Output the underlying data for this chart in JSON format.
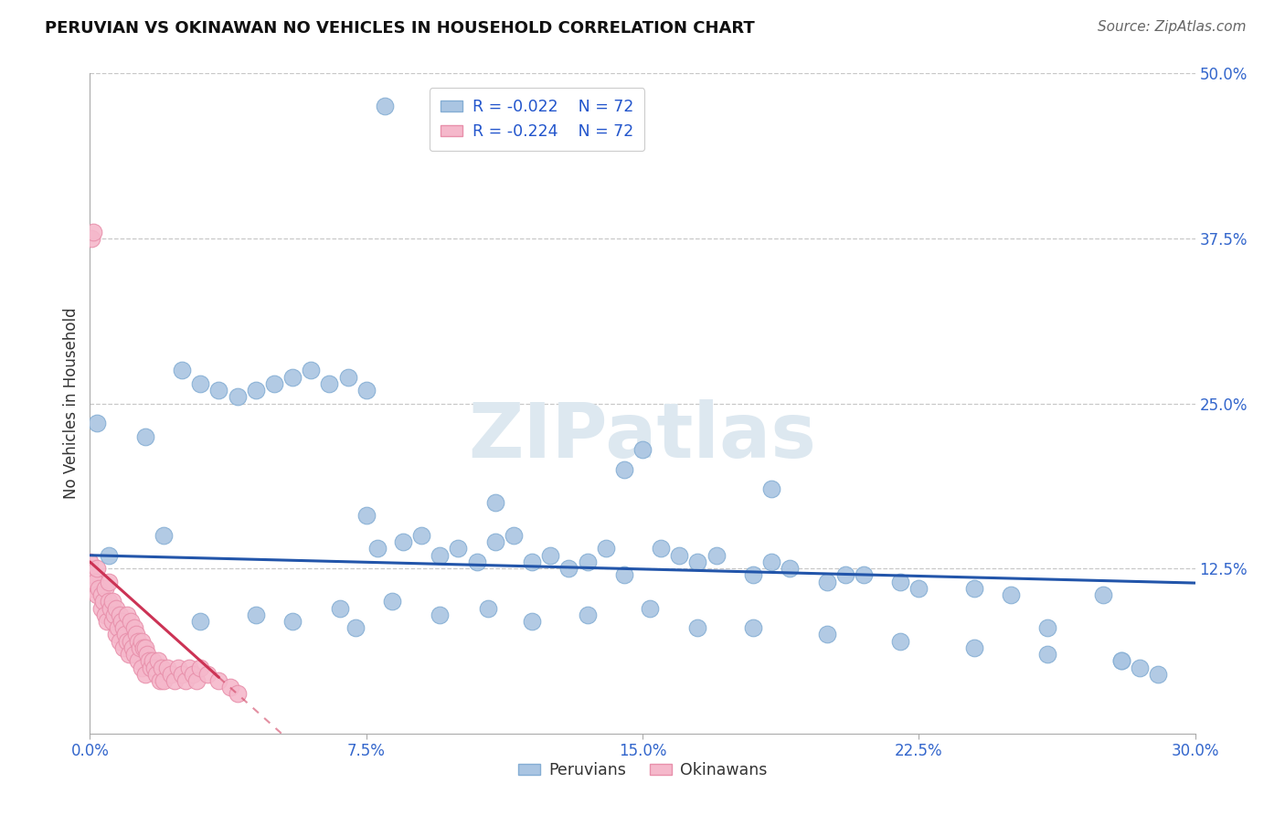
{
  "title": "PERUVIAN VS OKINAWAN NO VEHICLES IN HOUSEHOLD CORRELATION CHART",
  "source": "Source: ZipAtlas.com",
  "ylabel": "No Vehicles in Household",
  "xlim": [
    0.0,
    30.0
  ],
  "ylim": [
    0.0,
    50.0
  ],
  "ytick_vals": [
    12.5,
    25.0,
    37.5,
    50.0
  ],
  "xtick_vals": [
    0.0,
    7.5,
    15.0,
    22.5,
    30.0
  ],
  "legend_blue_r": "R = -0.022",
  "legend_blue_n": "N = 72",
  "legend_pink_r": "R = -0.224",
  "legend_pink_n": "N = 72",
  "legend_label_blue": "Peruvians",
  "legend_label_pink": "Okinawans",
  "blue_fill": "#aac5e2",
  "pink_fill": "#f5b8cb",
  "blue_edge": "#85aed4",
  "pink_edge": "#e890ab",
  "blue_line": "#2255aa",
  "pink_line": "#cc3355",
  "r_color": "#2255cc",
  "watermark_color": "#dde8f0",
  "peruvian_x": [
    0.2,
    0.5,
    1.5,
    2.0,
    2.5,
    3.0,
    3.5,
    4.0,
    4.5,
    5.0,
    5.5,
    6.0,
    6.5,
    7.0,
    7.5,
    7.8,
    8.0,
    8.5,
    9.0,
    9.5,
    10.0,
    10.5,
    11.0,
    11.5,
    12.0,
    12.5,
    13.0,
    13.5,
    14.0,
    14.5,
    15.0,
    15.5,
    16.0,
    16.5,
    17.0,
    18.0,
    18.5,
    19.0,
    20.0,
    20.5,
    21.0,
    22.0,
    22.5,
    24.0,
    25.0,
    26.0,
    27.5,
    28.0,
    28.5,
    29.0,
    3.0,
    4.5,
    5.5,
    6.8,
    7.2,
    8.2,
    9.5,
    10.8,
    12.0,
    13.5,
    15.2,
    16.5,
    18.0,
    20.0,
    22.0,
    24.0,
    26.0,
    28.0,
    7.5,
    11.0,
    14.5,
    18.5
  ],
  "peruvian_y": [
    23.5,
    13.5,
    22.5,
    15.0,
    27.5,
    26.5,
    26.0,
    25.5,
    26.0,
    26.5,
    27.0,
    27.5,
    26.5,
    27.0,
    26.0,
    14.0,
    47.5,
    14.5,
    15.0,
    13.5,
    14.0,
    13.0,
    14.5,
    15.0,
    13.0,
    13.5,
    12.5,
    13.0,
    14.0,
    12.0,
    21.5,
    14.0,
    13.5,
    13.0,
    13.5,
    12.0,
    13.0,
    12.5,
    11.5,
    12.0,
    12.0,
    11.5,
    11.0,
    11.0,
    10.5,
    8.0,
    10.5,
    5.5,
    5.0,
    4.5,
    8.5,
    9.0,
    8.5,
    9.5,
    8.0,
    10.0,
    9.0,
    9.5,
    8.5,
    9.0,
    9.5,
    8.0,
    8.0,
    7.5,
    7.0,
    6.5,
    6.0,
    5.5,
    16.5,
    17.5,
    20.0,
    18.5
  ],
  "okinawan_x": [
    0.0,
    0.0,
    0.1,
    0.1,
    0.15,
    0.2,
    0.2,
    0.25,
    0.3,
    0.3,
    0.35,
    0.4,
    0.4,
    0.45,
    0.5,
    0.5,
    0.55,
    0.6,
    0.6,
    0.65,
    0.7,
    0.7,
    0.75,
    0.8,
    0.8,
    0.85,
    0.9,
    0.9,
    0.95,
    1.0,
    1.0,
    1.05,
    1.1,
    1.1,
    1.15,
    1.2,
    1.2,
    1.25,
    1.3,
    1.3,
    1.35,
    1.4,
    1.4,
    1.45,
    1.5,
    1.5,
    1.55,
    1.6,
    1.65,
    1.7,
    1.75,
    1.8,
    1.85,
    1.9,
    1.95,
    2.0,
    2.1,
    2.2,
    2.3,
    2.4,
    2.5,
    2.6,
    2.7,
    2.8,
    2.9,
    3.0,
    3.2,
    3.5,
    3.8,
    4.0,
    0.05,
    0.1
  ],
  "okinawan_y": [
    12.5,
    13.0,
    11.0,
    12.0,
    11.5,
    10.5,
    12.5,
    11.0,
    9.5,
    10.5,
    10.0,
    9.0,
    11.0,
    8.5,
    10.0,
    11.5,
    9.5,
    8.5,
    10.0,
    9.0,
    7.5,
    9.5,
    8.0,
    7.0,
    9.0,
    8.5,
    6.5,
    8.0,
    7.5,
    7.0,
    9.0,
    6.0,
    8.5,
    7.0,
    6.5,
    6.0,
    8.0,
    7.5,
    5.5,
    7.0,
    6.5,
    5.0,
    7.0,
    6.5,
    4.5,
    6.5,
    6.0,
    5.5,
    5.0,
    5.5,
    5.0,
    4.5,
    5.5,
    4.0,
    5.0,
    4.0,
    5.0,
    4.5,
    4.0,
    5.0,
    4.5,
    4.0,
    5.0,
    4.5,
    4.0,
    5.0,
    4.5,
    4.0,
    3.5,
    3.0,
    37.5,
    38.0
  ]
}
